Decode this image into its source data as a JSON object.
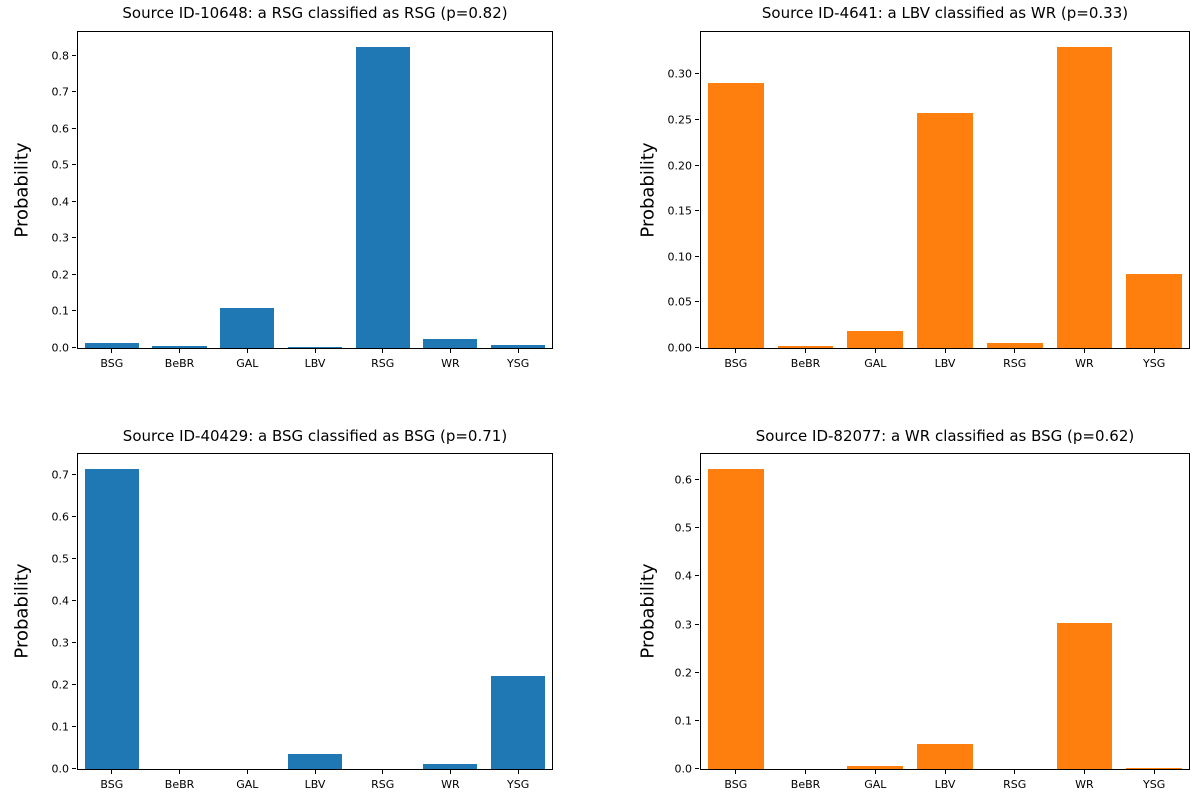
{
  "figure": {
    "background": "#ffffff",
    "blue": "#1f77b4",
    "orange": "#ff7f0e"
  },
  "chart_data": [
    {
      "type": "bar",
      "title": "Source ID-10648: a RSG classified as RSG (p=0.82)",
      "xlabel": "",
      "ylabel": "Probability",
      "categories": [
        "BSG",
        "BeBR",
        "GAL",
        "LBV",
        "RSG",
        "WR",
        "YSG"
      ],
      "values": [
        0.014,
        0.005,
        0.11,
        0.003,
        0.824,
        0.025,
        0.008
      ],
      "yticks": [
        0.0,
        0.1,
        0.2,
        0.3,
        0.4,
        0.5,
        0.6,
        0.7,
        0.8
      ],
      "ytick_labels": [
        "0.0",
        "0.1",
        "0.2",
        "0.3",
        "0.4",
        "0.5",
        "0.6",
        "0.7",
        "0.8"
      ],
      "ylim": [
        0,
        0.865
      ],
      "bar_color": "#1f77b4",
      "grid": false,
      "legend": null
    },
    {
      "type": "bar",
      "title": "Source ID-4641: a LBV classified as WR (p=0.33)",
      "xlabel": "",
      "ylabel": "Probability",
      "categories": [
        "BSG",
        "BeBR",
        "GAL",
        "LBV",
        "RSG",
        "WR",
        "YSG"
      ],
      "values": [
        0.291,
        0.002,
        0.019,
        0.258,
        0.005,
        0.33,
        0.081
      ],
      "yticks": [
        0.0,
        0.05,
        0.1,
        0.15,
        0.2,
        0.25,
        0.3
      ],
      "ytick_labels": [
        "0.00",
        "0.05",
        "0.10",
        "0.15",
        "0.20",
        "0.25",
        "0.30"
      ],
      "ylim": [
        0,
        0.3465
      ],
      "bar_color": "#ff7f0e",
      "grid": false,
      "legend": null
    },
    {
      "type": "bar",
      "title": "Source ID-40429: a BSG classified as BSG (p=0.71)",
      "xlabel": "",
      "ylabel": "Probability",
      "categories": [
        "BSG",
        "BeBR",
        "GAL",
        "LBV",
        "RSG",
        "WR",
        "YSG"
      ],
      "values": [
        0.713,
        0.0,
        0.0,
        0.036,
        0.0,
        0.013,
        0.222
      ],
      "yticks": [
        0.0,
        0.1,
        0.2,
        0.3,
        0.4,
        0.5,
        0.6,
        0.7
      ],
      "ytick_labels": [
        "0.0",
        "0.1",
        "0.2",
        "0.3",
        "0.4",
        "0.5",
        "0.6",
        "0.7"
      ],
      "ylim": [
        0,
        0.749
      ],
      "bar_color": "#1f77b4",
      "grid": false,
      "legend": null
    },
    {
      "type": "bar",
      "title": "Source ID-82077: a WR classified as BSG (p=0.62)",
      "xlabel": "",
      "ylabel": "Probability",
      "categories": [
        "BSG",
        "BeBR",
        "GAL",
        "LBV",
        "RSG",
        "WR",
        "YSG"
      ],
      "values": [
        0.623,
        0.0,
        0.006,
        0.052,
        0.0,
        0.303,
        0.003
      ],
      "yticks": [
        0.0,
        0.1,
        0.2,
        0.3,
        0.4,
        0.5,
        0.6
      ],
      "ytick_labels": [
        "0.0",
        "0.1",
        "0.2",
        "0.3",
        "0.4",
        "0.5",
        "0.6"
      ],
      "ylim": [
        0,
        0.654
      ],
      "bar_color": "#ff7f0e",
      "grid": false,
      "legend": null
    }
  ]
}
